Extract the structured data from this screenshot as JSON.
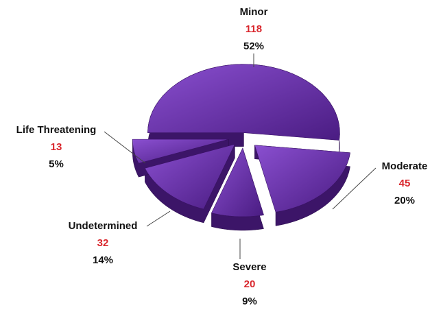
{
  "chart_data": {
    "type": "pie",
    "categories": [
      "Minor",
      "Moderate",
      "Severe",
      "Undetermined",
      "Life Threatening"
    ],
    "values": [
      118,
      45,
      20,
      32,
      13
    ],
    "percent_labels": [
      "52%",
      "20%",
      "9%",
      "14%",
      "5%"
    ],
    "color": "#6a30b0",
    "side_color": "#3c1568",
    "count_color": "#d9262c"
  }
}
